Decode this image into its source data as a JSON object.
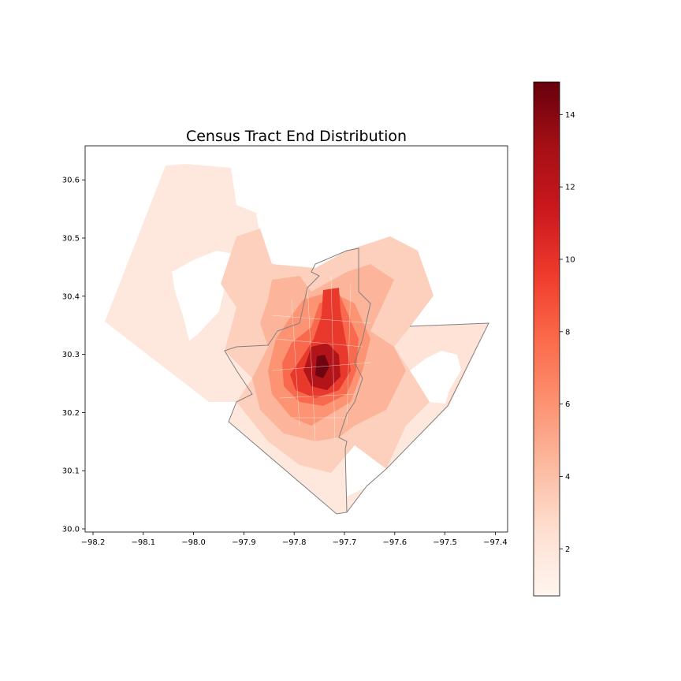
{
  "title": "Census Tract End Distribution",
  "map": {
    "x_ticks": [
      "−98.2",
      "−98.1",
      "−98.0",
      "−97.9",
      "−97.8",
      "−97.7",
      "−97.6",
      "−97.5",
      "−97.4"
    ],
    "y_ticks": [
      "30.0",
      "30.1",
      "30.2",
      "30.3",
      "30.4",
      "30.5",
      "30.6"
    ],
    "colorscale": "Reds",
    "region_outline_color": "#808080"
  },
  "colorbar": {
    "min": 0.7,
    "max": 14.9,
    "ticks": [
      "2",
      "4",
      "6",
      "8",
      "10",
      "12",
      "14"
    ]
  }
}
